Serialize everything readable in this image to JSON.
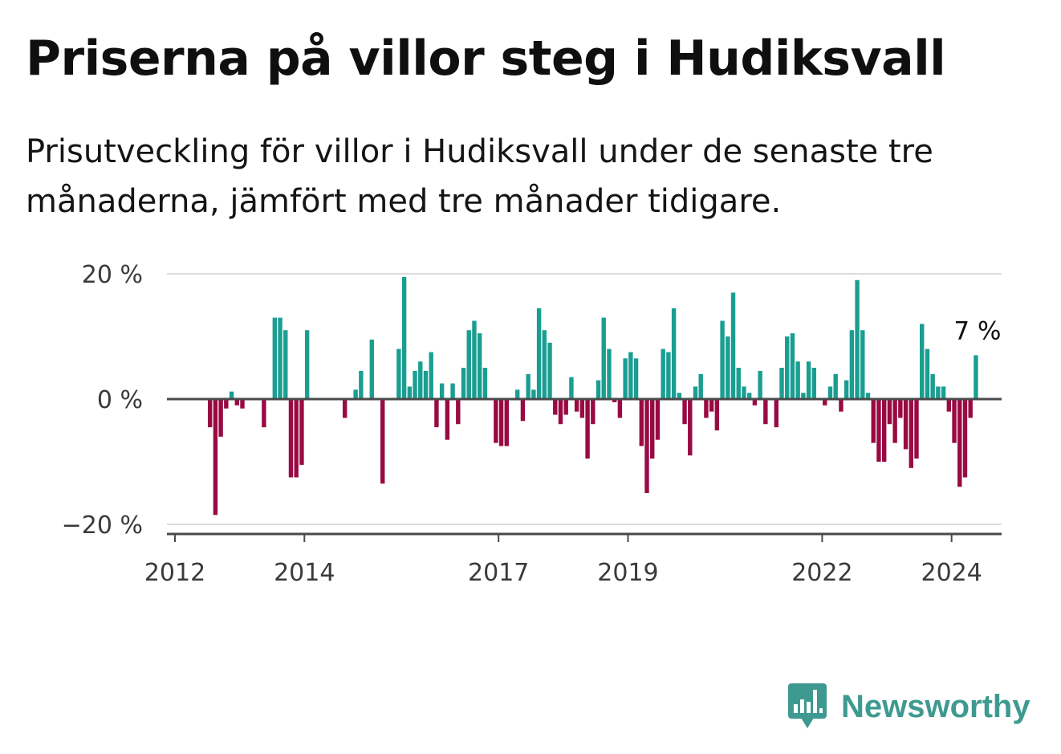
{
  "header": {
    "title": "Priserna på villor steg i Hudiksvall",
    "subtitle": "Prisutveckling för villor i Hudiksvall under de senaste tre månaderna, jämfört med tre månader tidigare."
  },
  "chart_data": {
    "type": "bar",
    "title": "Priserna på villor steg i Hudiksvall",
    "subtitle": "Prisutveckling för villor i Hudiksvall under de senaste tre månaderna, jämfört med tre månader tidigare.",
    "xlabel": "",
    "ylabel": "",
    "x_unit": "month",
    "x_start": "2012-01",
    "x_ticks": [
      "2012",
      "2014",
      "2017",
      "2019",
      "2022",
      "2024"
    ],
    "y_ticks": [
      20,
      0,
      -20
    ],
    "y_tick_labels": [
      "20 %",
      "0 %",
      "−20 %"
    ],
    "ylim": [
      -21,
      20.5
    ],
    "grid": true,
    "positive_color": "#1a9e91",
    "negative_color": "#990a43",
    "annotation": {
      "text": "7 %",
      "value": 7
    },
    "values": [
      0,
      0,
      0,
      0,
      0,
      0,
      -4.5,
      -18.5,
      -6,
      -1.5,
      1.2,
      -1,
      -1.5,
      0,
      0,
      0,
      -4.5,
      0,
      13,
      13,
      11,
      -12.5,
      -12.5,
      -10.5,
      11,
      0,
      0,
      0,
      0,
      0,
      0,
      -3,
      0,
      1.5,
      4.5,
      0,
      9.5,
      0,
      -13.5,
      0,
      0,
      8,
      19.5,
      2,
      4.5,
      6,
      4.5,
      7.5,
      -4.5,
      2.5,
      -6.5,
      2.5,
      -4,
      5,
      11,
      12.5,
      10.5,
      5,
      0,
      -7,
      -7.5,
      -7.5,
      0,
      1.5,
      -3.5,
      4,
      1.5,
      14.5,
      11,
      9,
      -2.5,
      -4,
      -2.5,
      3.5,
      -2,
      -3,
      -9.5,
      -4,
      3,
      13,
      8,
      -0.5,
      -3,
      6.5,
      7.5,
      6.5,
      -7.5,
      -15,
      -9.5,
      -6.5,
      8,
      7.5,
      14.5,
      1,
      -4,
      -9,
      2,
      4,
      -3,
      -2,
      -5,
      12.5,
      10,
      17,
      5,
      2,
      1,
      -1,
      4.5,
      -4,
      0,
      -4.5,
      5,
      10,
      10.5,
      6,
      1,
      6,
      5,
      0,
      -1,
      2,
      4,
      -2,
      3,
      11,
      19,
      11,
      1,
      -7,
      -10,
      -10,
      -4,
      -7,
      -3,
      -8,
      -11,
      -9.5,
      12,
      8,
      4,
      2,
      2,
      -2,
      -7,
      -14,
      -12.5,
      -3,
      7
    ]
  },
  "brand": {
    "name": "Newsworthy",
    "color": "#3e9a90",
    "icon": "bar-chart-speech-bubble-icon"
  }
}
